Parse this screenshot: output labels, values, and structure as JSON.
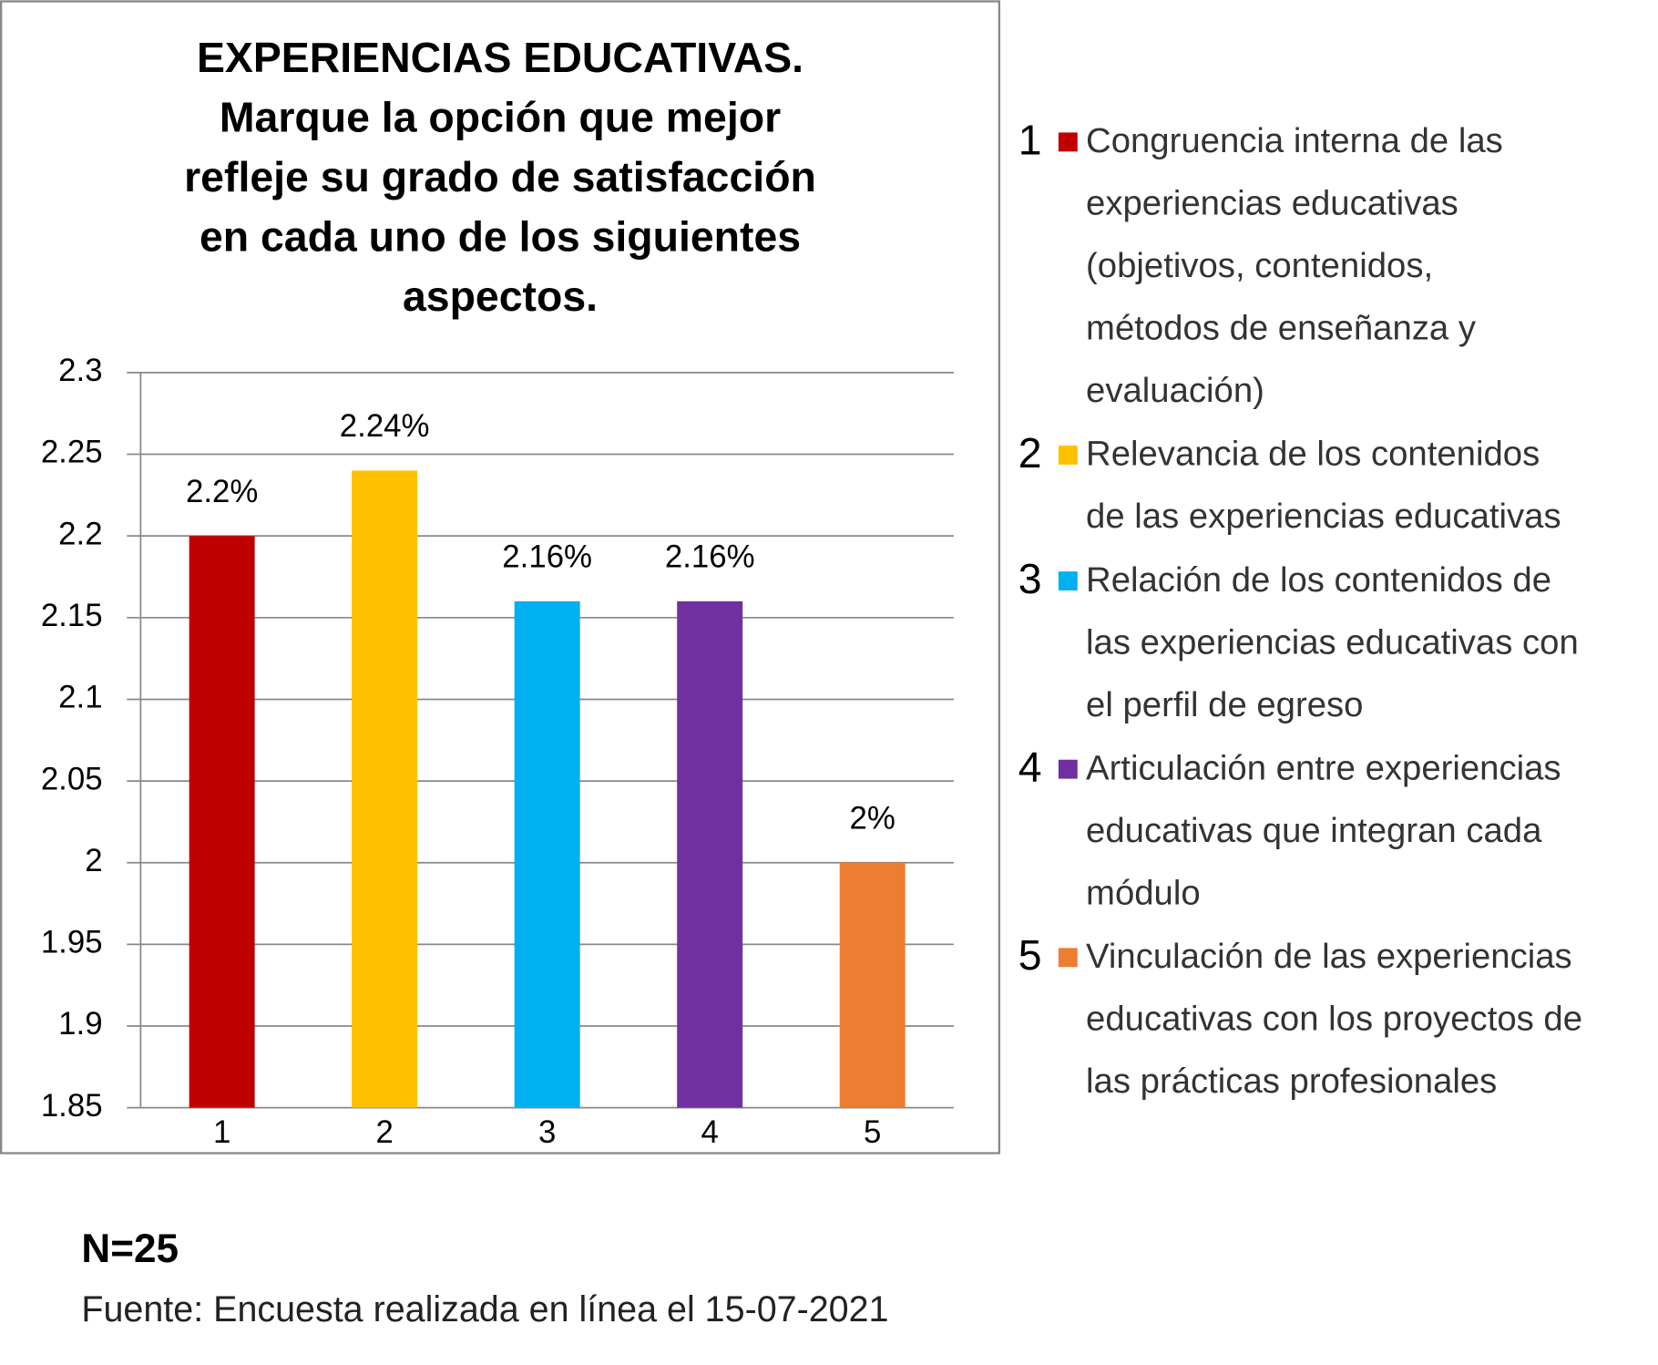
{
  "chart_data": {
    "type": "bar",
    "title": [
      "EXPERIENCIAS EDUCATIVAS.",
      "Marque la opción que mejor",
      "refleje su grado de satisfacción",
      "en cada uno de los siguientes",
      "aspectos."
    ],
    "categories": [
      "1",
      "2",
      "3",
      "4",
      "5"
    ],
    "values": [
      2.2,
      2.24,
      2.16,
      2.16,
      2.0
    ],
    "value_labels": [
      "2.2%",
      "2.24%",
      "2.16%",
      "2.16%",
      "2%"
    ],
    "colors": [
      "#c00000",
      "#ffc000",
      "#00b0f0",
      "#7030a0",
      "#ed7d31"
    ],
    "ylim": [
      1.85,
      2.3
    ],
    "yticks": [
      1.85,
      1.9,
      1.95,
      2,
      2.05,
      2.1,
      2.15,
      2.2,
      2.25,
      2.3
    ],
    "grid": true,
    "legend": [
      [
        "Congruencia interna de las",
        "experiencias educativas",
        "(objetivos, contenidos,",
        "métodos de enseñanza y",
        "evaluación)"
      ],
      [
        "Relevancia de los contenidos",
        "de las experiencias educativas"
      ],
      [
        "Relación de los contenidos de",
        "las experiencias educativas con",
        "el perfil de egreso"
      ],
      [
        "Articulación entre experiencias",
        "educativas que integran cada",
        "módulo"
      ],
      [
        "Vinculación de las experiencias",
        "educativas con los proyectos de",
        "las prácticas profesionales"
      ]
    ]
  },
  "note": "N=25",
  "source": "Fuente: Encuesta realizada en línea el 15-07-2021"
}
